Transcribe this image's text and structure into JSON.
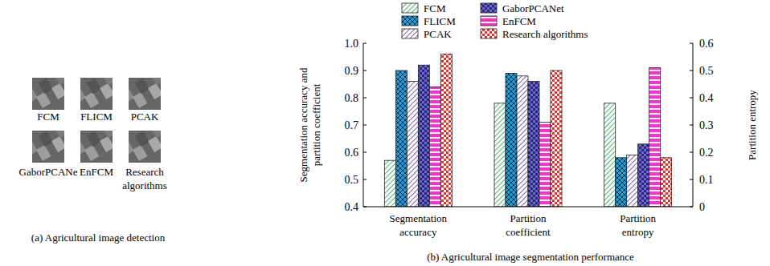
{
  "panel_a": {
    "caption": "(a) Agricultural image detection",
    "images": [
      "FCM",
      "FLICM",
      "PCAK",
      "GaborPCANe",
      "EnFCM",
      "Research algorithms"
    ]
  },
  "chart_data": {
    "type": "bar",
    "title": "(b) Agricultural image segmentation performance",
    "ylabel": "Segmentation accuracy and partition coefficient",
    "y2label": "Partition entropy",
    "categories": [
      "Segmentation accuracy",
      "Partition coefficient",
      "Partition entropy"
    ],
    "series": [
      {
        "name": "FCM",
        "color": "#5fb87a",
        "values": [
          0.57,
          0.78,
          null
        ]
      },
      {
        "name": "FLICM",
        "color": "#1f9ed8",
        "values": [
          0.9,
          0.89,
          null
        ]
      },
      {
        "name": "PCAK",
        "color": "#8e6fb0",
        "values": [
          0.86,
          0.88,
          null
        ]
      },
      {
        "name": "GaborPCANet",
        "color": "#6a66d8",
        "values": [
          0.92,
          0.86,
          null
        ]
      },
      {
        "name": "EnFCM",
        "color": "#ff33cc",
        "values": [
          0.84,
          0.71,
          null
        ]
      },
      {
        "name": "Research algorithms",
        "color": "#e8322e",
        "values": [
          0.96,
          0.9,
          null
        ]
      },
      {
        "color": "#5fb87a",
        "axis": "y2",
        "values": [
          null,
          null,
          0.38
        ]
      },
      {
        "color": "#1f9ed8",
        "axis": "y2",
        "values": [
          null,
          null,
          0.18
        ]
      },
      {
        "color": "#8e6fb0",
        "axis": "y2",
        "values": [
          null,
          null,
          0.19
        ]
      },
      {
        "color": "#6a66d8",
        "axis": "y2",
        "values": [
          null,
          null,
          0.23
        ]
      },
      {
        "color": "#ff33cc",
        "axis": "y2",
        "values": [
          null,
          null,
          0.51
        ]
      },
      {
        "color": "#e8322e",
        "axis": "y2",
        "values": [
          null,
          null,
          0.18
        ]
      }
    ],
    "ylim": [
      0.4,
      1.0
    ],
    "yticks": [
      0.4,
      0.5,
      0.6,
      0.7,
      0.8,
      0.9,
      {
        "value": 1.0,
        "label": "1.0"
      }
    ],
    "y2lim": [
      0,
      0.6
    ],
    "y2ticks": [
      0,
      0.1,
      0.2,
      0.3,
      0.4,
      0.5,
      0.6
    ],
    "legend": "top",
    "grid": false
  }
}
